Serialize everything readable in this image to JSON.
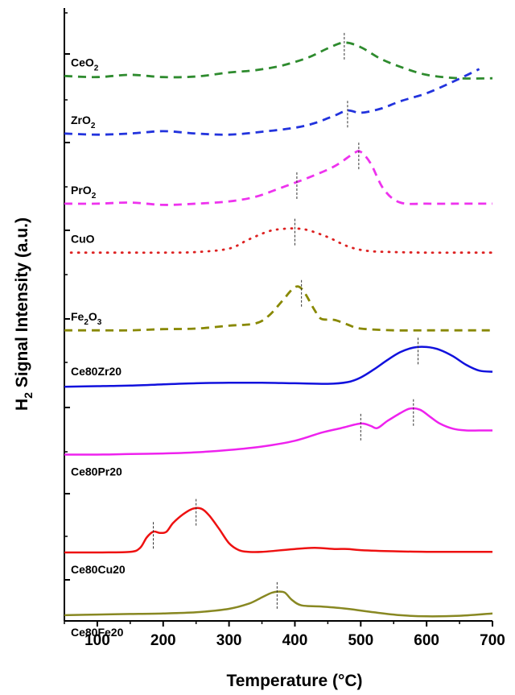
{
  "chart_data": {
    "type": "line",
    "title": "",
    "xlabel": "Temperature (°C)",
    "ylabel_main": "H",
    "ylabel_sub": "2",
    "ylabel_rest": " Signal Intensity (a.u.)",
    "xlim": [
      50,
      700
    ],
    "xticks": [
      100,
      200,
      300,
      400,
      500,
      600,
      700
    ],
    "xtick_labels": [
      "100",
      "200",
      "300",
      "400",
      "500",
      "600",
      "700"
    ],
    "grid": false,
    "series": [
      {
        "name": "CeO",
        "sub": "2",
        "color": "#2e8b2e",
        "dash": "dash",
        "x": [
          50,
          100,
          150,
          200,
          250,
          300,
          340,
          380,
          420,
          450,
          475,
          500,
          530,
          560,
          600,
          650,
          700
        ],
        "y": [
          0.942,
          0.94,
          0.944,
          0.94,
          0.941,
          0.948,
          0.952,
          0.96,
          0.974,
          0.99,
          1.0,
          0.992,
          0.972,
          0.958,
          0.944,
          0.938,
          0.938
        ],
        "peaks": [
          475
        ]
      },
      {
        "name": "ZrO",
        "sub": "2",
        "color": "#2233dd",
        "dash": "dash",
        "x": [
          50,
          100,
          150,
          200,
          250,
          300,
          350,
          400,
          430,
          460,
          480,
          500,
          530,
          560,
          600,
          640,
          680
        ],
        "y": [
          0.842,
          0.84,
          0.842,
          0.846,
          0.842,
          0.84,
          0.845,
          0.852,
          0.86,
          0.873,
          0.882,
          0.878,
          0.885,
          0.898,
          0.912,
          0.932,
          0.954
        ],
        "peaks": [
          480
        ]
      },
      {
        "name": "PrO",
        "sub": "2",
        "color": "#ee33ee",
        "dash": "dash",
        "x": [
          50,
          100,
          150,
          200,
          250,
          300,
          340,
          380,
          420,
          460,
          490,
          500,
          515,
          535,
          560,
          600,
          650,
          700
        ],
        "y": [
          0.72,
          0.72,
          0.722,
          0.718,
          0.72,
          0.724,
          0.732,
          0.748,
          0.765,
          0.785,
          0.808,
          0.81,
          0.79,
          0.745,
          0.722,
          0.72,
          0.72,
          0.72
        ],
        "peaks": [
          403,
          497
        ]
      },
      {
        "name": "CuO",
        "sub": "",
        "color": "#dd2222",
        "dash": "dot",
        "x": [
          60,
          100,
          150,
          200,
          250,
          300,
          330,
          360,
          380,
          400,
          420,
          450,
          480,
          510,
          550,
          600,
          650,
          700
        ],
        "y": [
          0.635,
          0.635,
          0.635,
          0.635,
          0.636,
          0.642,
          0.658,
          0.672,
          0.676,
          0.677,
          0.674,
          0.662,
          0.646,
          0.638,
          0.636,
          0.635,
          0.635,
          0.635
        ],
        "peaks": [
          400
        ]
      },
      {
        "name": "Fe",
        "sub": "2",
        "name2": "O",
        "sub2": "3",
        "color": "#888800",
        "dash": "dash",
        "x": [
          50,
          100,
          150,
          200,
          250,
          300,
          340,
          360,
          380,
          395,
          405,
          415,
          430,
          440,
          460,
          480,
          500,
          550,
          600,
          650,
          700
        ],
        "y": [
          0.5,
          0.5,
          0.5,
          0.502,
          0.503,
          0.508,
          0.512,
          0.525,
          0.55,
          0.57,
          0.576,
          0.565,
          0.535,
          0.52,
          0.518,
          0.51,
          0.503,
          0.5,
          0.5,
          0.5,
          0.5
        ],
        "peaks": [
          410
        ]
      },
      {
        "name": "Ce80Zr20",
        "sub": "",
        "color": "#1111dd",
        "dash": "solid",
        "x": [
          50,
          100,
          150,
          200,
          250,
          300,
          350,
          400,
          450,
          480,
          500,
          520,
          540,
          560,
          580,
          600,
          620,
          640,
          660,
          680,
          700
        ],
        "y": [
          0.402,
          0.403,
          0.404,
          0.406,
          0.408,
          0.409,
          0.409,
          0.408,
          0.407,
          0.41,
          0.418,
          0.432,
          0.448,
          0.462,
          0.47,
          0.471,
          0.466,
          0.455,
          0.44,
          0.43,
          0.428
        ],
        "peaks": [
          587
        ]
      },
      {
        "name": "Ce80Pr20",
        "sub": "",
        "color": "#ee22ee",
        "dash": "solid",
        "x": [
          50,
          100,
          150,
          200,
          250,
          300,
          350,
          400,
          440,
          470,
          500,
          515,
          525,
          540,
          560,
          575,
          590,
          605,
          620,
          640,
          660,
          680,
          700
        ],
        "y": [
          0.284,
          0.284,
          0.285,
          0.286,
          0.288,
          0.292,
          0.298,
          0.308,
          0.322,
          0.33,
          0.338,
          0.334,
          0.33,
          0.342,
          0.356,
          0.364,
          0.362,
          0.35,
          0.338,
          0.329,
          0.326,
          0.326,
          0.326
        ],
        "peaks": [
          500,
          580
        ]
      },
      {
        "name": "Ce80Cu20",
        "sub": "",
        "color": "#ee1111",
        "dash": "solid",
        "x": [
          50,
          100,
          150,
          165,
          175,
          185,
          195,
          205,
          215,
          230,
          245,
          258,
          270,
          285,
          300,
          315,
          330,
          350,
          400,
          430,
          460,
          480,
          500,
          550,
          600,
          650,
          700
        ],
        "y": [
          0.114,
          0.114,
          0.115,
          0.122,
          0.14,
          0.15,
          0.148,
          0.15,
          0.165,
          0.18,
          0.19,
          0.19,
          0.178,
          0.155,
          0.13,
          0.118,
          0.115,
          0.115,
          0.12,
          0.122,
          0.12,
          0.12,
          0.118,
          0.116,
          0.115,
          0.115,
          0.115
        ],
        "peaks": [
          185,
          250
        ]
      },
      {
        "name": "Ce80Fe20",
        "sub": "",
        "color": "#888822",
        "dash": "solid",
        "x": [
          50,
          100,
          150,
          200,
          250,
          300,
          330,
          350,
          365,
          375,
          385,
          395,
          410,
          440,
          480,
          520,
          560,
          600,
          650,
          700
        ],
        "y": [
          0.005,
          0.006,
          0.007,
          0.008,
          0.01,
          0.016,
          0.025,
          0.036,
          0.044,
          0.046,
          0.044,
          0.032,
          0.022,
          0.02,
          0.016,
          0.01,
          0.005,
          0.003,
          0.004,
          0.008
        ],
        "peaks": [
          373
        ]
      }
    ]
  }
}
